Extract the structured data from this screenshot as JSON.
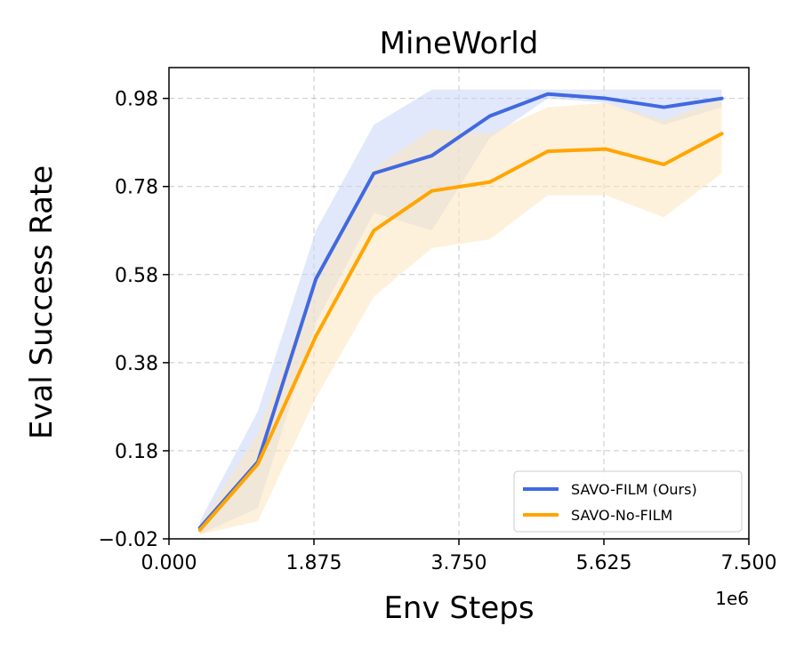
{
  "chart_data": {
    "type": "line",
    "title": "MineWorld",
    "xlabel": "Env Steps",
    "ylabel": "Eval Success Rate",
    "x_offset_label": "1e6",
    "xlim": [
      0.0,
      7.5
    ],
    "ylim": [
      -0.02,
      1.05
    ],
    "x_ticks": [
      0.0,
      1.875,
      3.75,
      5.625,
      7.5
    ],
    "x_tick_labels": [
      "0.000",
      "1.875",
      "3.750",
      "5.625",
      "7.500"
    ],
    "y_ticks": [
      -0.02,
      0.18,
      0.38,
      0.58,
      0.78,
      0.98
    ],
    "y_tick_labels": [
      "−0.02",
      "0.18",
      "0.38",
      "0.58",
      "0.78",
      "0.98"
    ],
    "grid": true,
    "legend_position": "lower-right",
    "x": [
      0.4,
      1.15,
      1.9,
      2.65,
      3.4,
      4.15,
      4.9,
      5.65,
      6.4,
      7.15
    ],
    "series": [
      {
        "name": "SAVO-FILM (Ours)",
        "color": "#4169e1",
        "band_color": "#c9d6f8",
        "values": [
          0.005,
          0.155,
          0.57,
          0.81,
          0.85,
          0.94,
          0.99,
          0.98,
          0.96,
          0.98
        ],
        "lower": [
          -0.01,
          0.05,
          0.47,
          0.72,
          0.68,
          0.89,
          0.98,
          0.97,
          0.92,
          0.96
        ],
        "upper": [
          0.02,
          0.27,
          0.68,
          0.92,
          1.0,
          1.0,
          1.0,
          1.0,
          1.0,
          1.0
        ]
      },
      {
        "name": "SAVO-No-FILM",
        "color": "#ffa500",
        "band_color": "#fde6bd",
        "values": [
          0.0,
          0.15,
          0.44,
          0.68,
          0.77,
          0.79,
          0.86,
          0.865,
          0.83,
          0.9
        ],
        "lower": [
          -0.01,
          0.02,
          0.3,
          0.53,
          0.64,
          0.66,
          0.76,
          0.76,
          0.71,
          0.81
        ],
        "upper": [
          0.01,
          0.22,
          0.57,
          0.82,
          0.91,
          0.9,
          0.96,
          0.97,
          0.93,
          0.98
        ]
      }
    ]
  }
}
